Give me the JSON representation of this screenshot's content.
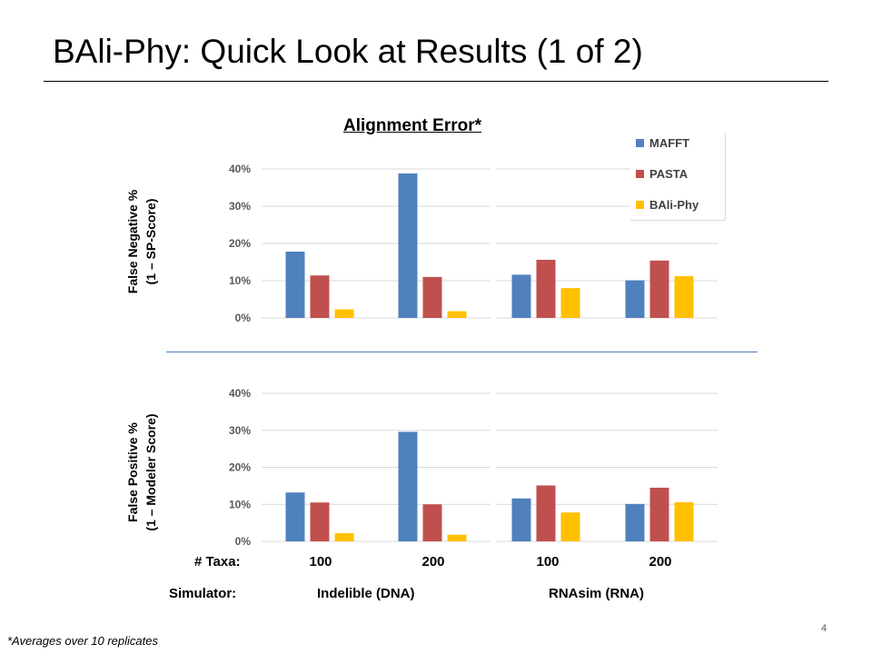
{
  "slide": {
    "title": "BAli-Phy: Quick Look at Results (1 of 2)",
    "footnote": "*Averages over 10 replicates",
    "page_number": "4"
  },
  "chart_data": {
    "type": "bar",
    "title": "Alignment Error*",
    "categories": [
      "100",
      "200",
      "100",
      "200"
    ],
    "category_row_label": "# Taxa:",
    "simulator_row_label": "Simulator:",
    "simulators": [
      "Indelible (DNA)",
      "RNAsim (RNA)"
    ],
    "legend_position": "top-right",
    "legend": [
      {
        "name": "MAFFT",
        "color": "#4f81bd"
      },
      {
        "name": "PASTA",
        "color": "#c0504d"
      },
      {
        "name": "BAli-Phy",
        "color": "#ffc000"
      }
    ],
    "ylim": [
      0,
      40
    ],
    "yticks": [
      "0%",
      "10%",
      "20%",
      "30%",
      "40%"
    ],
    "grid": true,
    "panels": [
      {
        "ylabel_line1": "False Negative %",
        "ylabel_line2": "(1 – SP-Score)",
        "series": [
          {
            "name": "MAFFT",
            "values": [
              17.8,
              38.8,
              11.6,
              10.1
            ]
          },
          {
            "name": "PASTA",
            "values": [
              11.4,
              11.0,
              15.6,
              15.4
            ]
          },
          {
            "name": "BAli-Phy",
            "values": [
              2.3,
              1.8,
              8.0,
              11.2
            ]
          }
        ]
      },
      {
        "ylabel_line1": "False Positive %",
        "ylabel_line2": "(1 – Modeler Score)",
        "series": [
          {
            "name": "MAFFT",
            "values": [
              13.2,
              29.6,
              11.6,
              10.1
            ]
          },
          {
            "name": "PASTA",
            "values": [
              10.5,
              10.0,
              15.1,
              14.5
            ]
          },
          {
            "name": "BAli-Phy",
            "values": [
              2.2,
              1.8,
              7.8,
              10.6
            ]
          }
        ]
      }
    ]
  }
}
